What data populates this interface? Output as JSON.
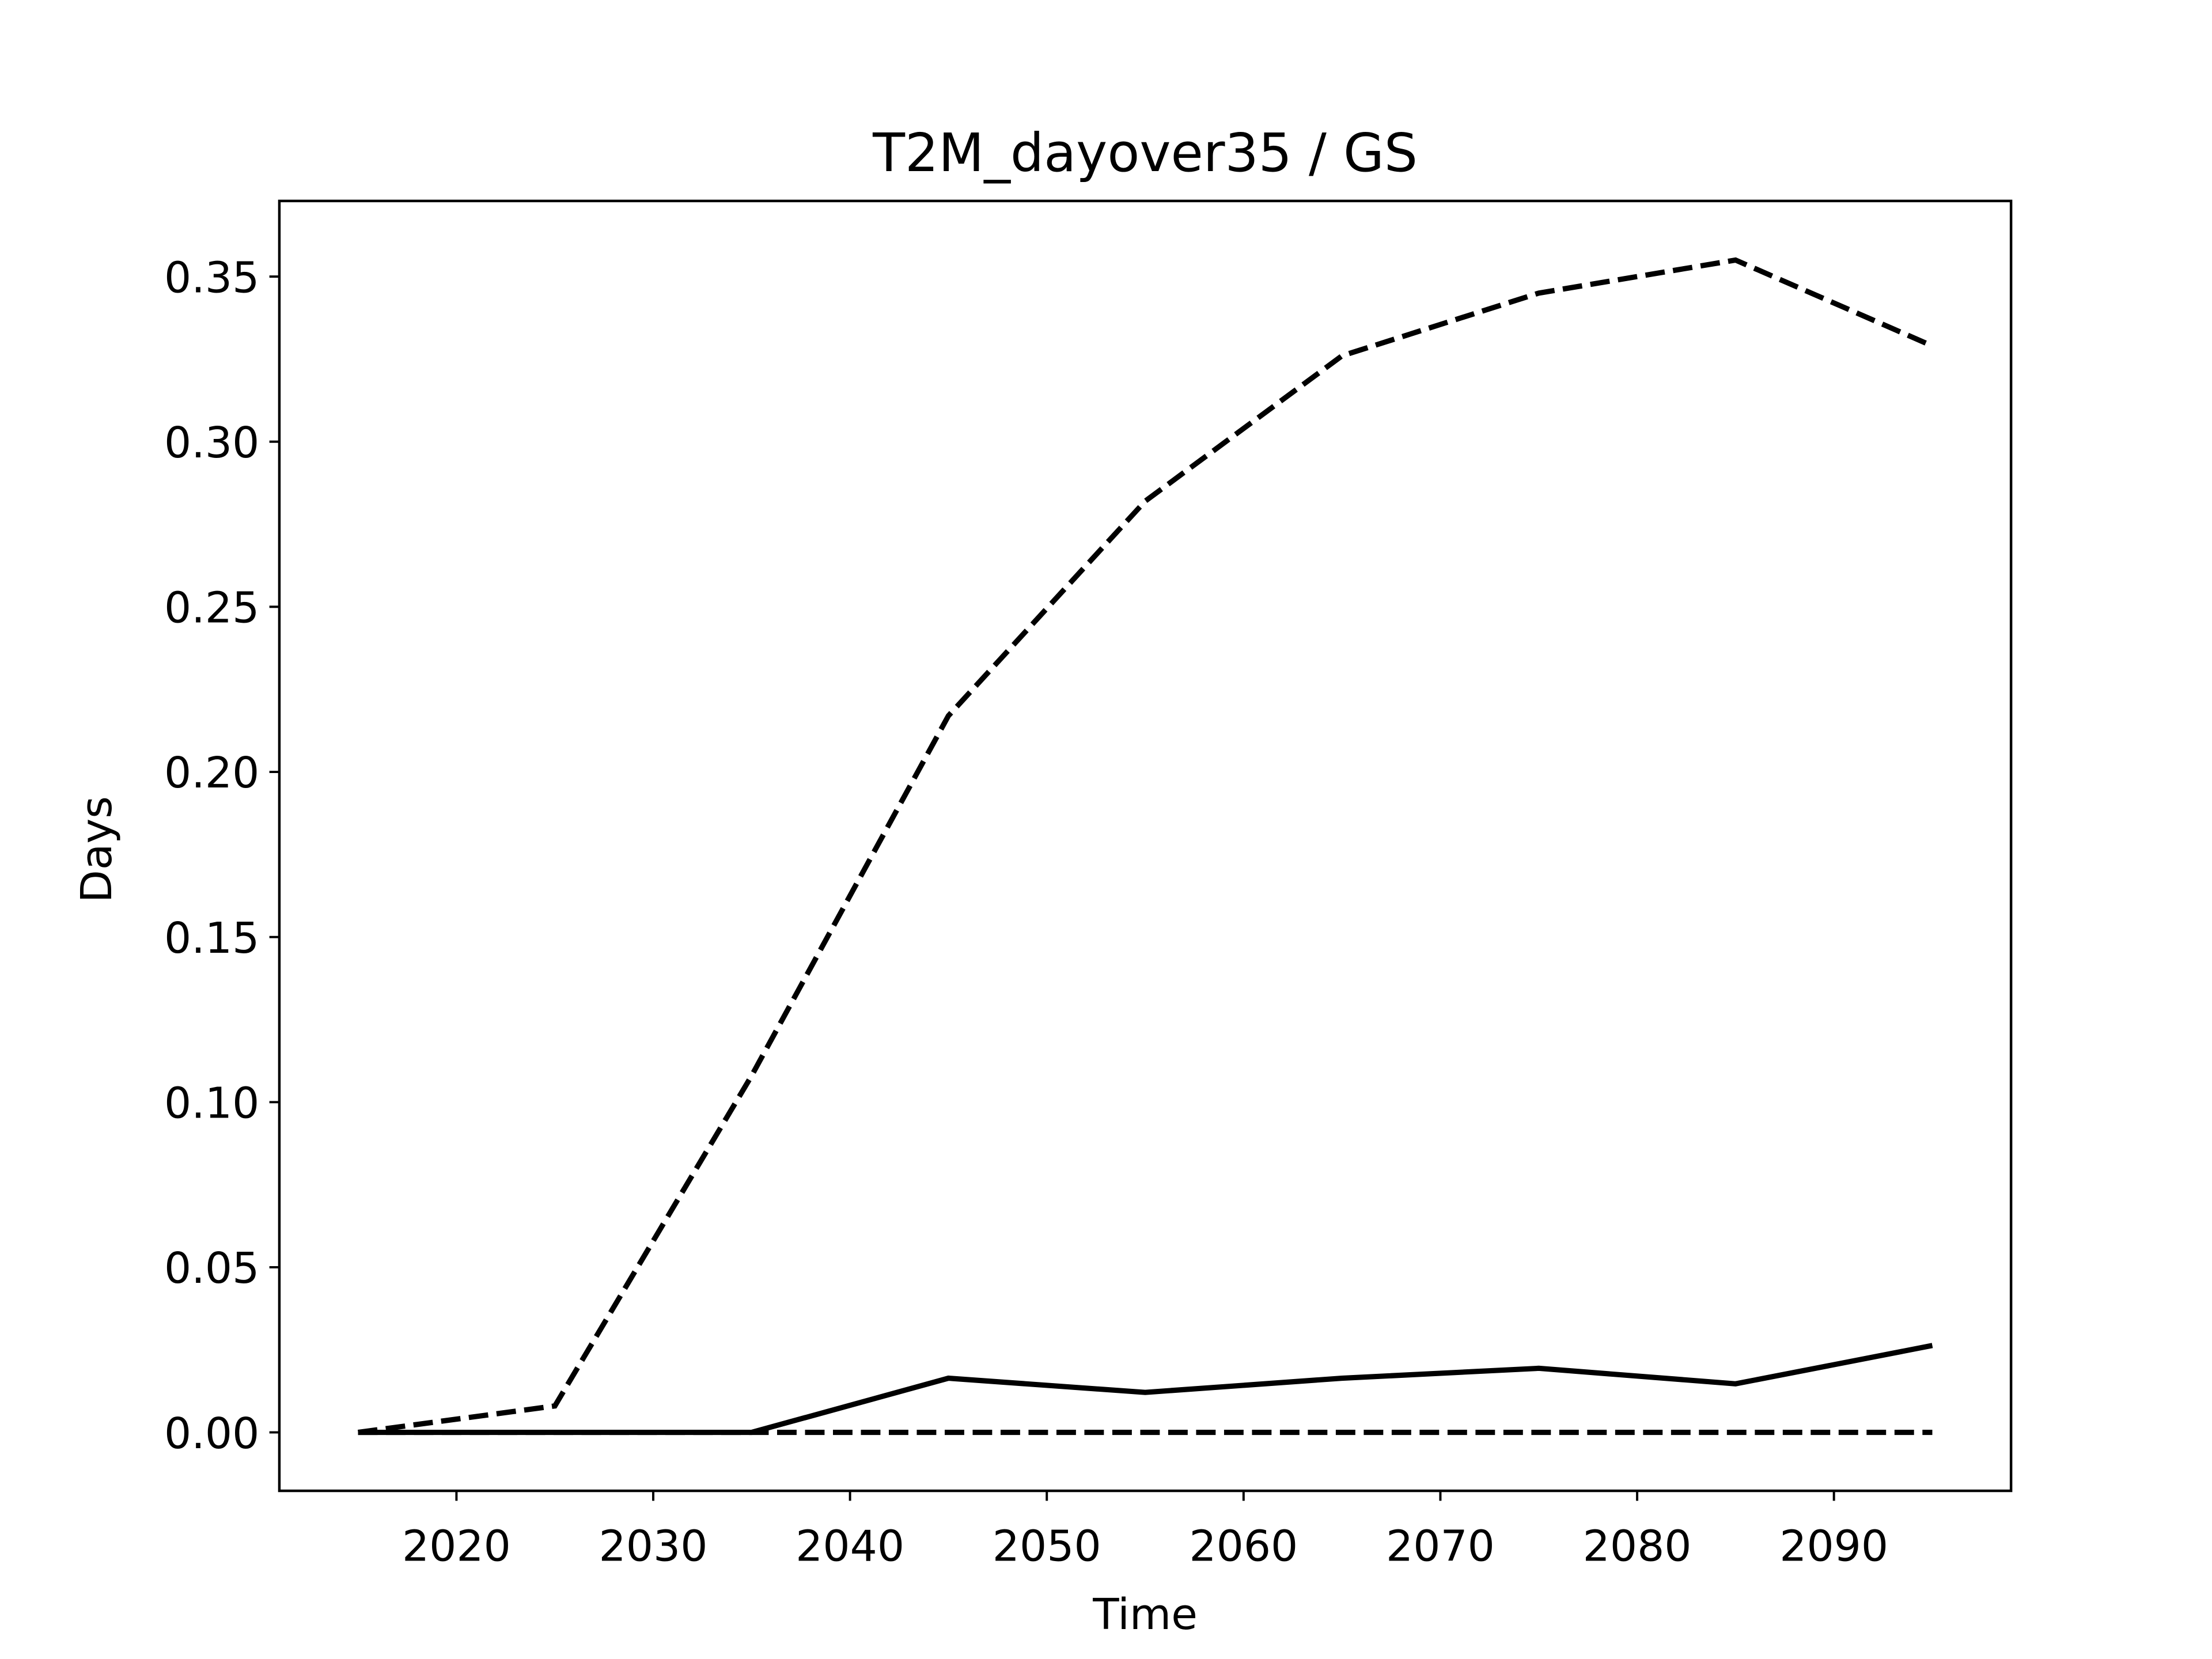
{
  "chart_data": {
    "type": "line",
    "title": "T2M_dayover35 / GS",
    "xlabel": "Time",
    "ylabel": "Days",
    "x": [
      2015,
      2025,
      2035,
      2045,
      2055,
      2065,
      2075,
      2085,
      2095
    ],
    "series": [
      {
        "color": "#000000",
        "dash": true,
        "values": [
          0,
          0.008,
          0.108,
          0.217,
          0.282,
          0.326,
          0.345,
          0.355,
          0.329
        ]
      },
      {
        "color": "#000000",
        "dash": false,
        "values": [
          0,
          0,
          0,
          0.0164,
          0.0121,
          0.0164,
          0.0194,
          0.0147,
          0.0263
        ]
      },
      {
        "color": "#000000",
        "dash": true,
        "values": [
          0,
          0,
          0,
          0,
          0,
          0,
          0,
          0,
          0
        ]
      }
    ],
    "xlim": [
      2011,
      2099
    ],
    "ylim": [
      -0.0177,
      0.3729
    ],
    "xticks": [
      2020,
      2030,
      2040,
      2050,
      2060,
      2070,
      2080,
      2090
    ],
    "yticks": [
      {
        "value": 0,
        "label": "0.00"
      },
      {
        "value": 0.05,
        "label": "0.05"
      },
      {
        "value": 0.1,
        "label": "0.10"
      },
      {
        "value": 0.15,
        "label": "0.15"
      },
      {
        "value": 0.2,
        "label": "0.20"
      },
      {
        "value": 0.25,
        "label": "0.25"
      },
      {
        "value": 0.3,
        "label": "0.30"
      },
      {
        "value": 0.35,
        "label": "0.35"
      }
    ],
    "grid": false
  }
}
